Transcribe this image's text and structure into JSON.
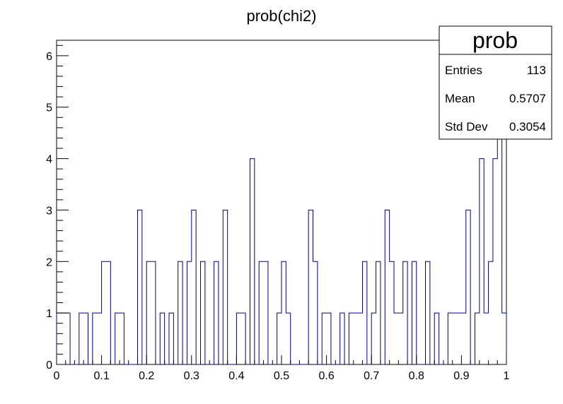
{
  "chart_data": {
    "type": "histogram",
    "title": "prob(chi2)",
    "xlabel": "",
    "ylabel": "",
    "xlim": [
      0,
      1
    ],
    "ylim": [
      0,
      6.3
    ],
    "bins": 100,
    "bin_width": 0.01,
    "x_ticks": [
      "0",
      "0.1",
      "0.2",
      "0.3",
      "0.4",
      "0.5",
      "0.6",
      "0.7",
      "0.8",
      "0.9",
      "1"
    ],
    "y_ticks": [
      "0",
      "1",
      "2",
      "3",
      "4",
      "5",
      "6"
    ],
    "line_color": "#000080",
    "bin_contents": [
      1,
      1,
      1,
      0,
      0,
      1,
      1,
      0,
      1,
      1,
      2,
      2,
      0,
      1,
      1,
      0,
      0,
      0,
      3,
      0,
      2,
      2,
      0,
      1,
      0,
      1,
      0,
      2,
      0,
      2,
      3,
      0,
      2,
      0,
      0,
      2,
      0,
      3,
      0,
      0,
      1,
      1,
      0,
      4,
      0,
      2,
      2,
      0,
      0,
      1,
      2,
      1,
      0,
      0,
      0,
      0,
      3,
      2,
      0,
      1,
      1,
      0,
      0,
      1,
      0,
      1,
      1,
      1,
      2,
      0,
      1,
      2,
      0,
      3,
      2,
      1,
      1,
      2,
      0,
      2,
      0,
      0,
      2,
      0,
      1,
      0,
      0,
      1,
      1,
      1,
      1,
      3,
      0,
      1,
      4,
      1,
      2,
      4,
      5,
      1
    ],
    "stats_box": {
      "title": "prob",
      "rows": [
        {
          "label": "Entries",
          "value": "113"
        },
        {
          "label": "Mean",
          "value": "0.5707"
        },
        {
          "label": "Std Dev",
          "value": "0.3054"
        }
      ]
    }
  }
}
